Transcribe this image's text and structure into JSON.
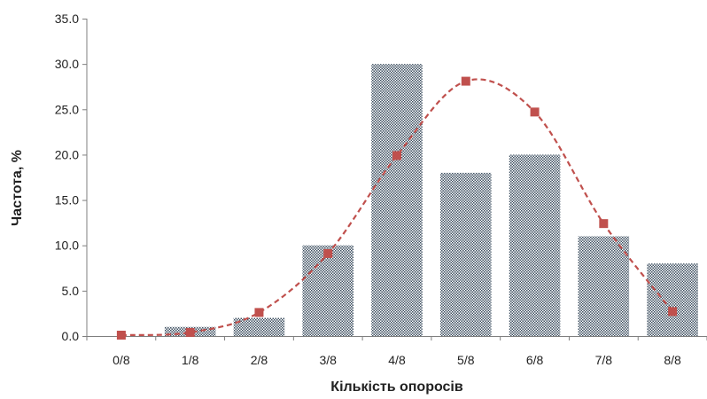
{
  "chart_data": {
    "type": "bar",
    "categories": [
      "0/8",
      "1/8",
      "2/8",
      "3/8",
      "4/8",
      "5/8",
      "6/8",
      "7/8",
      "8/8"
    ],
    "series": [
      {
        "type": "bar",
        "values": [
          0,
          1,
          2,
          10,
          30,
          18,
          20,
          11,
          8
        ]
      },
      {
        "type": "line",
        "values": [
          0.1,
          0.4,
          2.6,
          9.1,
          19.9,
          28.1,
          24.7,
          12.4,
          2.7
        ]
      }
    ],
    "xlabel": "Кількість опоросів",
    "ylabel": "Частота, %",
    "ylim": [
      0,
      35
    ],
    "yticks": [
      "0.0",
      "5.0",
      "10.0",
      "15.0",
      "20.0",
      "25.0",
      "30.0",
      "35.0"
    ],
    "grid": false,
    "legend": "none",
    "colors": {
      "bar": "#5a6b7b",
      "line": "#c0504d",
      "marker": "#c0504d"
    }
  }
}
